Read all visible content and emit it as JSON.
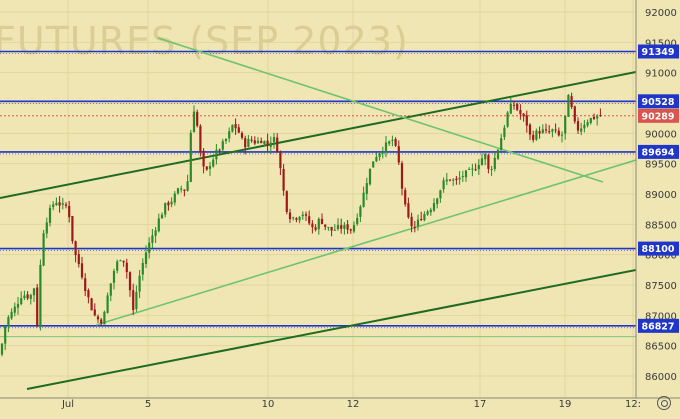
{
  "chart_data": {
    "type": "candlestick",
    "watermark": "FUTURES (SEP 2023)",
    "x_ticks": [
      "Jul",
      "5",
      "10",
      "12",
      "17",
      "19",
      "12:"
    ],
    "y_ticks": [
      "92000",
      "91500",
      "91000",
      "90500",
      "90000",
      "89500",
      "89000",
      "88500",
      "88000",
      "87500",
      "87000",
      "86500",
      "86000"
    ],
    "ylim": [
      85650,
      92200
    ],
    "horizontal_levels": [
      {
        "label": "91349",
        "value": 91349,
        "color": "#1f36c8"
      },
      {
        "label": "90528",
        "value": 90528,
        "color": "#1f36c8"
      },
      {
        "label": "89694",
        "value": 89694,
        "color": "#1f36c8"
      },
      {
        "label": "88100",
        "value": 88100,
        "color": "#1f36c8"
      },
      {
        "label": "86827",
        "value": 86827,
        "color": "#1f36c8"
      }
    ],
    "last_price": {
      "label": "90289",
      "value": 90289,
      "color": "#d9534f"
    },
    "support_level": {
      "value": 86650,
      "color": "#7cc87c"
    },
    "colors": {
      "up": "#2a8a2a",
      "down": "#a01818",
      "trend_dark": "#1f6b1f",
      "trend_light": "#6fc36f"
    },
    "show_grid": true
  },
  "settings_icon": "settings-icon"
}
